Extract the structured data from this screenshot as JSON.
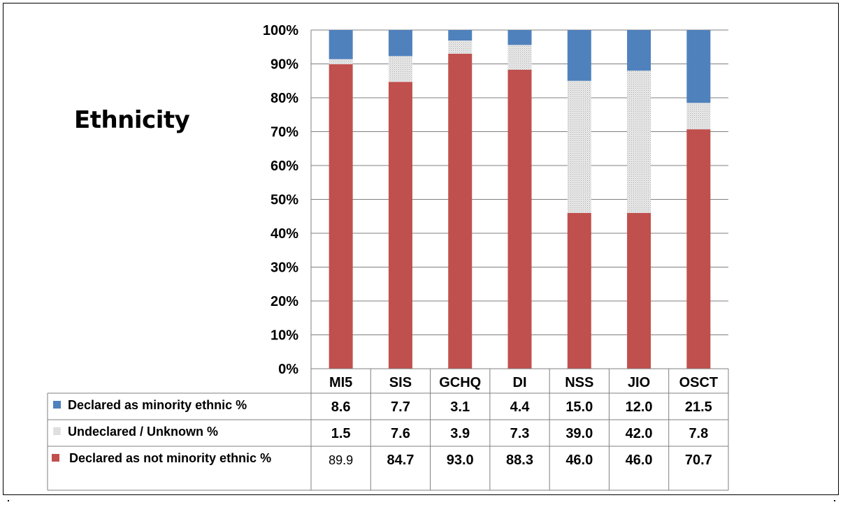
{
  "chart_data": {
    "type": "bar",
    "stacked": true,
    "percent": true,
    "title": "Ethnicity",
    "categories": [
      "MI5",
      "SIS",
      "GCHQ",
      "DI",
      "NSS",
      "JIO",
      "OSCT"
    ],
    "series": [
      {
        "name": "Declared as minority ethnic %",
        "values": [
          8.6,
          7.7,
          3.1,
          4.4,
          15.0,
          12.0,
          21.5
        ],
        "labels": [
          "8.6",
          "7.7",
          "3.1",
          "4.4",
          "15.0",
          "12.0",
          "21.5"
        ],
        "color": "#4f81bd"
      },
      {
        "name": "Undeclared / Unknown %",
        "values": [
          1.5,
          7.6,
          3.9,
          7.3,
          39.0,
          42.0,
          7.8
        ],
        "labels": [
          "1.5",
          "7.6",
          "3.9",
          "7.3",
          "39.0",
          "42.0",
          "7.8"
        ],
        "color": "#e6e6e6",
        "pattern": "dotted"
      },
      {
        "name": "Declared as not minority ethnic %",
        "values": [
          89.9,
          84.7,
          93.0,
          88.3,
          46.0,
          46.0,
          70.7
        ],
        "labels": [
          "89.9",
          "84.7",
          "93.0",
          "88.3",
          "46.0",
          "46.0",
          "70.7"
        ],
        "color": "#c0504d"
      }
    ],
    "yticks": [
      "0%",
      "10%",
      "20%",
      "30%",
      "40%",
      "50%",
      "60%",
      "70%",
      "80%",
      "90%",
      "100%"
    ],
    "ylim": [
      0,
      100
    ],
    "grid": true,
    "legend": "data-table"
  }
}
